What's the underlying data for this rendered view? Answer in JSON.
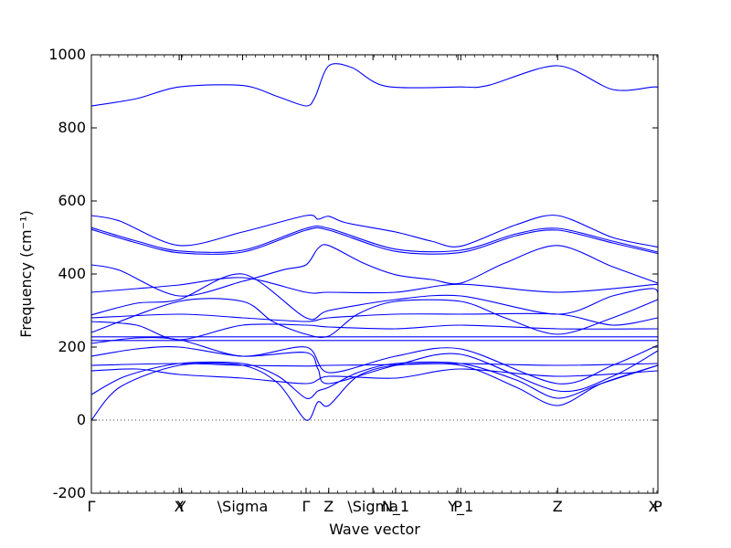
{
  "chart_data": {
    "type": "line",
    "xlabel": "Wave vector",
    "ylabel": "Frequency (cm⁻¹)",
    "ylim": [
      -200,
      1000
    ],
    "yticks": [
      -200,
      0,
      200,
      400,
      600,
      800,
      1000
    ],
    "grid": false,
    "zero_line": true,
    "series_color": "#0000ff",
    "xlim": [
      0,
      1
    ],
    "xticks": [
      {
        "x": 0.0,
        "label": "Γ"
      },
      {
        "x": 0.155,
        "label": "X"
      },
      {
        "x": 0.159,
        "label": "Y"
      },
      {
        "x": 0.267,
        "label": "\\Sigma"
      },
      {
        "x": 0.379,
        "label": "Γ"
      },
      {
        "x": 0.419,
        "label": "Z"
      },
      {
        "x": 0.497,
        "label": "\\Sigma"
      },
      {
        "x": 0.537,
        "label": "N_1"
      },
      {
        "x": 0.647,
        "label": "P"
      },
      {
        "x": 0.652,
        "label": "Y_1"
      },
      {
        "x": 0.823,
        "label": "Z"
      },
      {
        "x": 0.992,
        "label": "X"
      },
      {
        "x": 1.0,
        "label": "P"
      }
    ],
    "minor_tick_step": 0.0161,
    "series": [
      {
        "x": [
          0,
          0.08,
          0.155,
          0.267,
          0.33,
          0.379,
          0.395,
          0.419,
          0.46,
          0.52,
          0.65,
          0.7,
          0.823,
          0.92,
          0.992,
          1.0
        ],
        "y": [
          860,
          880,
          912,
          916,
          885,
          860,
          885,
          970,
          965,
          914,
          912,
          916,
          970,
          905,
          912,
          910
        ]
      },
      {
        "x": [
          0,
          0.05,
          0.155,
          0.267,
          0.379,
          0.4,
          0.419,
          0.45,
          0.537,
          0.6,
          0.652,
          0.75,
          0.823,
          0.92,
          0.992,
          1.0
        ],
        "y": [
          560,
          545,
          478,
          515,
          560,
          550,
          558,
          540,
          515,
          490,
          476,
          535,
          560,
          500,
          476,
          474
        ]
      },
      {
        "x": [
          0,
          0.08,
          0.155,
          0.267,
          0.379,
          0.419,
          0.537,
          0.652,
          0.75,
          0.823,
          0.92,
          1.0
        ],
        "y": [
          527,
          490,
          463,
          465,
          525,
          525,
          468,
          465,
          510,
          525,
          490,
          460
        ]
      },
      {
        "x": [
          0,
          0.08,
          0.155,
          0.267,
          0.379,
          0.419,
          0.537,
          0.652,
          0.75,
          0.823,
          0.92,
          1.0
        ],
        "y": [
          522,
          485,
          458,
          460,
          520,
          520,
          462,
          459,
          505,
          520,
          485,
          456
        ]
      },
      {
        "x": [
          0,
          0.05,
          0.155,
          0.267,
          0.34,
          0.379,
          0.4,
          0.419,
          0.48,
          0.537,
          0.6,
          0.652,
          0.73,
          0.823,
          0.92,
          1.0
        ],
        "y": [
          425,
          410,
          340,
          380,
          412,
          425,
          470,
          478,
          430,
          398,
          385,
          375,
          430,
          478,
          420,
          375
        ]
      },
      {
        "x": [
          0,
          0.08,
          0.155,
          0.267,
          0.379,
          0.419,
          0.537,
          0.652,
          0.823,
          1.0
        ],
        "y": [
          350,
          360,
          370,
          390,
          350,
          350,
          350,
          372,
          350,
          372
        ]
      },
      {
        "x": [
          0,
          0.08,
          0.155,
          0.267,
          0.379,
          0.419,
          0.537,
          0.652,
          0.823,
          0.92,
          0.992,
          1.0
        ],
        "y": [
          288,
          320,
          330,
          400,
          280,
          300,
          330,
          340,
          290,
          340,
          360,
          330
        ]
      },
      {
        "x": [
          0,
          0.155,
          0.267,
          0.32,
          0.379,
          0.419,
          0.47,
          0.537,
          0.652,
          0.73,
          0.823,
          0.92,
          1.0
        ],
        "y": [
          240,
          325,
          325,
          270,
          235,
          230,
          290,
          325,
          325,
          280,
          235,
          280,
          330
        ]
      },
      {
        "x": [
          0,
          0.155,
          0.267,
          0.379,
          0.419,
          0.537,
          0.652,
          0.823,
          0.92,
          1.0
        ],
        "y": [
          280,
          290,
          280,
          270,
          280,
          290,
          290,
          290,
          260,
          280
        ]
      },
      {
        "x": [
          0,
          0.08,
          0.155,
          0.267,
          0.379,
          0.419,
          0.537,
          0.652,
          0.823,
          1.0
        ],
        "y": [
          270,
          260,
          220,
          260,
          260,
          255,
          250,
          260,
          250,
          250
        ]
      },
      {
        "x": [
          0,
          1
        ],
        "y": [
          228,
          228
        ]
      },
      {
        "x": [
          0,
          1
        ],
        "y": [
          218,
          218
        ]
      },
      {
        "x": [
          0,
          0.08,
          0.155,
          0.267,
          0.379,
          0.419,
          0.537,
          0.652,
          0.823,
          0.92,
          1.0
        ],
        "y": [
          210,
          225,
          220,
          175,
          200,
          130,
          175,
          195,
          100,
          150,
          205
        ]
      },
      {
        "x": [
          0,
          0.08,
          0.155,
          0.267,
          0.379,
          0.4,
          0.419,
          0.537,
          0.652,
          0.823,
          0.92,
          1.0
        ],
        "y": [
          175,
          195,
          200,
          175,
          185,
          140,
          100,
          150,
          180,
          80,
          120,
          190
        ]
      },
      {
        "x": [
          0,
          0.155,
          0.267,
          0.379,
          0.419,
          0.537,
          0.652,
          0.823,
          1.0
        ],
        "y": [
          150,
          155,
          150,
          148,
          150,
          152,
          155,
          150,
          155
        ]
      },
      {
        "x": [
          0,
          0.08,
          0.155,
          0.267,
          0.379,
          0.419,
          0.537,
          0.652,
          0.823,
          1.0
        ],
        "y": [
          135,
          140,
          125,
          115,
          100,
          120,
          115,
          140,
          120,
          135
        ]
      },
      {
        "x": [
          0,
          0.06,
          0.155,
          0.267,
          0.33,
          0.379,
          0.4,
          0.419,
          0.47,
          0.537,
          0.652,
          0.75,
          0.823,
          0.9,
          1.0
        ],
        "y": [
          70,
          120,
          155,
          155,
          120,
          60,
          80,
          90,
          130,
          155,
          155,
          110,
          60,
          100,
          150
        ]
      },
      {
        "x": [
          0,
          0.05,
          0.155,
          0.267,
          0.33,
          0.379,
          0.4,
          0.419,
          0.47,
          0.537,
          0.652,
          0.75,
          0.823,
          0.9,
          1.0
        ],
        "y": [
          0,
          90,
          150,
          150,
          100,
          0,
          50,
          40,
          120,
          150,
          150,
          90,
          40,
          100,
          150
        ]
      }
    ]
  }
}
